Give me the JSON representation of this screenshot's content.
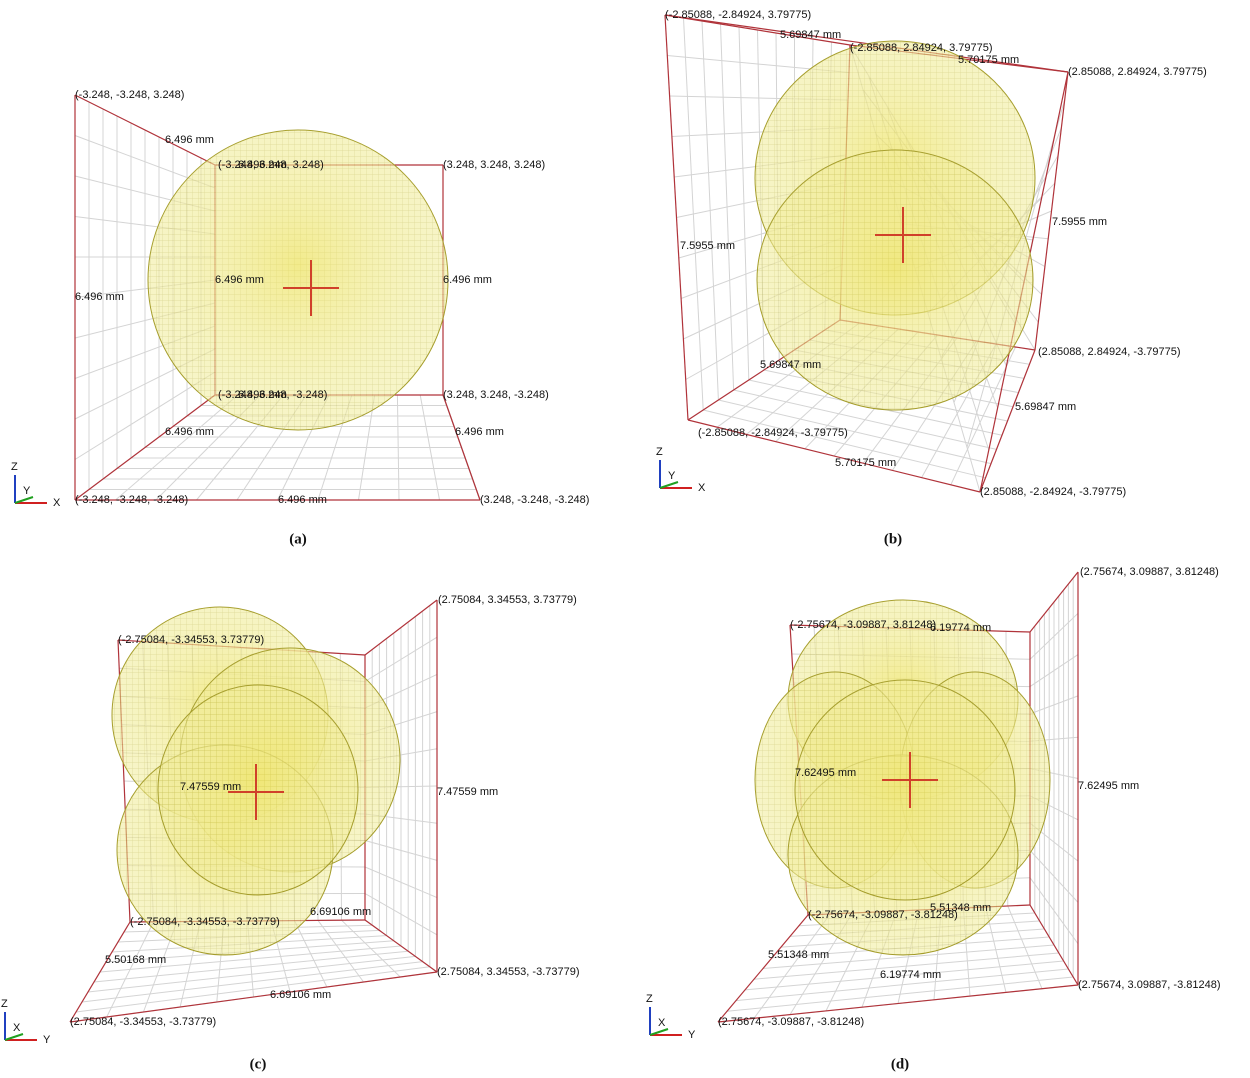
{
  "panels": [
    {
      "caption": "(a)",
      "axes": [
        "Z",
        "Y",
        "X"
      ],
      "labels": [
        "(-3.248, -3.248, 3.248)",
        "6.496 mm",
        "(-3.248, 3.248, 3.248)",
        "6.496 mm",
        "(3.248, 3.248, 3.248)",
        "6.496 mm",
        "6.496 mm",
        "6.496 mm",
        "(-3.248, 3.248, -3.248)",
        "6.496 mm",
        "(3.248, 3.248, -3.248)",
        "6.496 mm",
        "6.496 mm",
        "(-3.248, -3.248, -3.248)",
        "6.496 mm",
        "(3.248, -3.248, -3.248)"
      ]
    },
    {
      "caption": "(b)",
      "axes": [
        "Z",
        "Y",
        "X"
      ],
      "labels": [
        "(-2.85088, -2.84924, 3.79775)",
        "5.69847 mm",
        "(-2.85088, 2.84924, 3.79775)",
        "5.70175 mm",
        "(2.85088, 2.84924, 3.79775)",
        "7.5955 mm",
        "7.5955 mm",
        "5.69847 mm",
        "(2.85088, 2.84924, -3.79775)",
        "5.69847 mm",
        "(-2.85088, -2.84924, -3.79775)",
        "5.70175 mm",
        "(2.85088, -2.84924, -3.79775)"
      ]
    },
    {
      "caption": "(c)",
      "axes": [
        "Z",
        "X",
        "Y"
      ],
      "labels": [
        "(2.75084, 3.34553, 3.73779)",
        "(-2.75084, -3.34553, 3.73779)",
        "7.47559 mm",
        "7.47559 mm",
        "6.69106 mm",
        "(-2.75084, -3.34553, -3.73779)",
        "(2.75084, 3.34553, -3.73779)",
        "5.50168 mm",
        "6.69106 mm",
        "(2.75084, -3.34553, -3.73779)"
      ]
    },
    {
      "caption": "(d)",
      "axes": [
        "Z",
        "X",
        "Y"
      ],
      "labels": [
        "(2.75674, 3.09887, 3.81248)",
        "(-2.75674, -3.09887, 3.81248)",
        "6.19774 mm",
        "7.62495 mm",
        "7.62495 mm",
        "(-2.75674, -3.09887, -3.81248)",
        "5.51348 mm",
        "5.51348 mm",
        "6.19774 mm",
        "(2.75674, 3.09887, -3.81248)",
        "(2.75674, -3.09887, -3.81248)"
      ]
    }
  ]
}
